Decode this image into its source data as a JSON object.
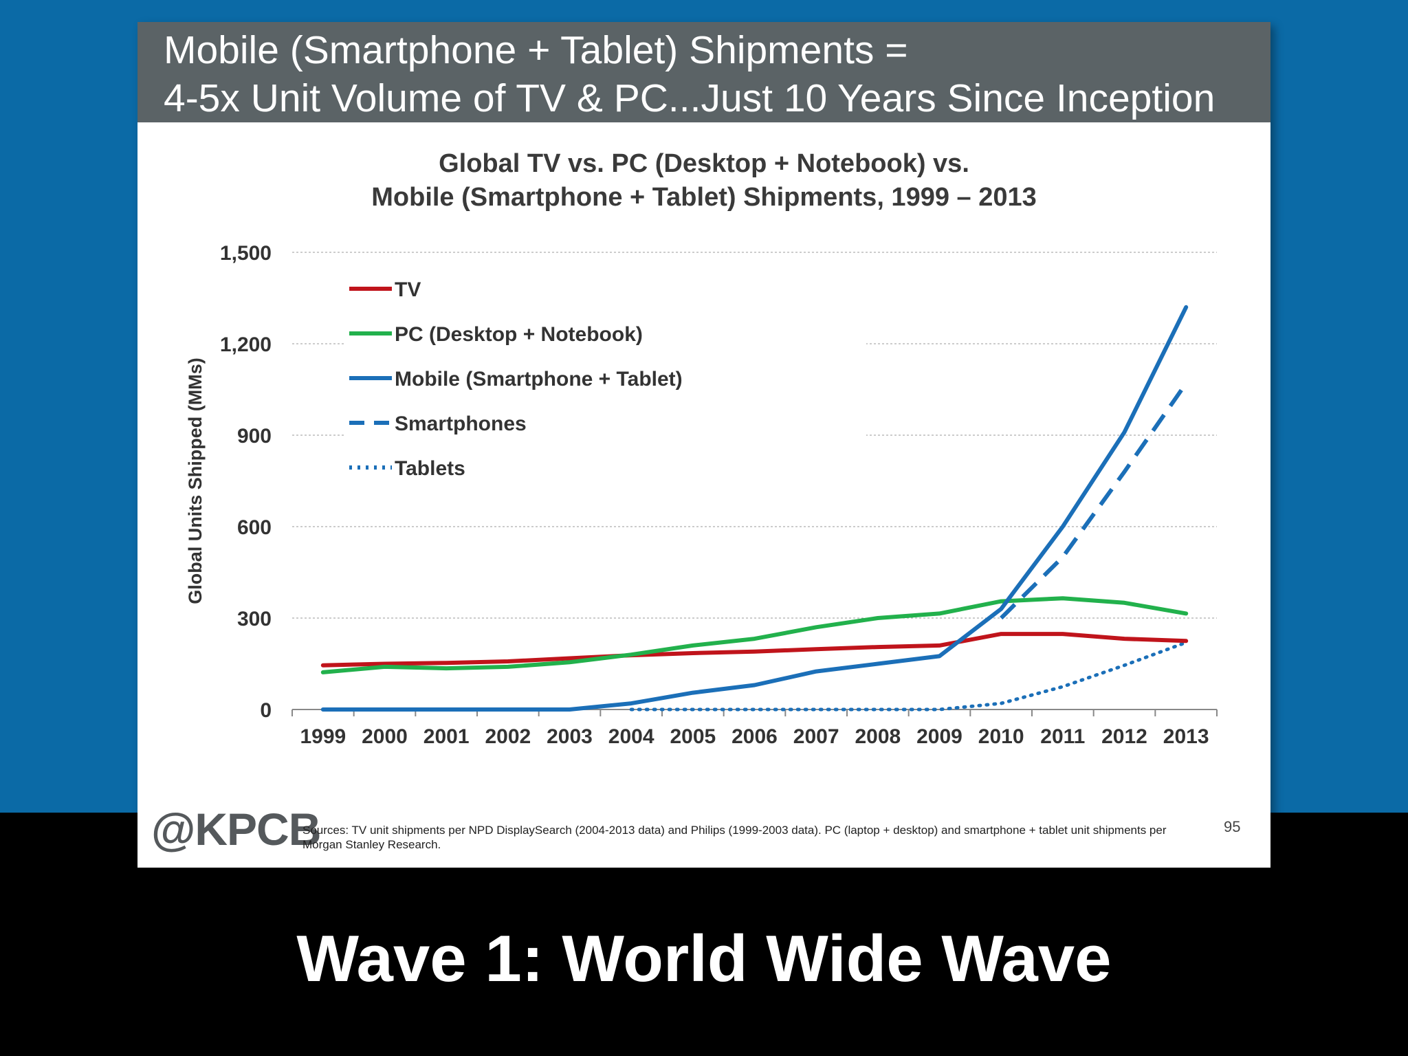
{
  "slide": {
    "title_line1": "Mobile (Smartphone + Tablet) Shipments =",
    "title_line2": "4-5x Unit Volume of TV & PC...Just 10 Years Since Inception",
    "logo": "@KPCB",
    "sources": "Sources: TV unit shipments per NPD DisplaySearch (2004-2013 data) and Philips (1999-2003 data). PC (laptop + desktop) and smartphone + tablet unit shipments per Morgan Stanley Research.",
    "page_number": "95"
  },
  "caption": "Wave 1: World Wide Wave",
  "chart_data": {
    "type": "line",
    "title_line1": "Global TV vs. PC (Desktop + Notebook) vs.",
    "title_line2": "Mobile (Smartphone + Tablet) Shipments, 1999 – 2013",
    "ylabel": "Global Units Shipped (MMs)",
    "xlabel": "",
    "ylim": [
      0,
      1500
    ],
    "yticks": [
      0,
      300,
      600,
      900,
      1200,
      1500
    ],
    "ytick_labels": [
      "0",
      "300",
      "600",
      "900",
      "1,200",
      "1,500"
    ],
    "grid": true,
    "legend_placement": "top-left",
    "categories": [
      "1999",
      "2000",
      "2001",
      "2002",
      "2003",
      "2004",
      "2005",
      "2006",
      "2007",
      "2008",
      "2009",
      "2010",
      "2011",
      "2012",
      "2013"
    ],
    "series": [
      {
        "name": "TV",
        "color": "#c0141b",
        "style": "solid",
        "values": [
          145,
          150,
          153,
          158,
          168,
          178,
          185,
          190,
          198,
          205,
          210,
          248,
          248,
          232,
          225
        ]
      },
      {
        "name": "PC (Desktop + Notebook)",
        "color": "#22b14c",
        "style": "solid",
        "values": [
          122,
          140,
          135,
          140,
          155,
          180,
          210,
          232,
          270,
          300,
          315,
          355,
          365,
          350,
          315
        ]
      },
      {
        "name": "Mobile (Smartphone + Tablet)",
        "color": "#1b6fb8",
        "style": "solid",
        "values": [
          0,
          0,
          0,
          0,
          0,
          20,
          55,
          80,
          125,
          150,
          175,
          330,
          600,
          910,
          1320
        ]
      },
      {
        "name": "Smartphones",
        "color": "#1b6fb8",
        "style": "dashed",
        "values": [
          null,
          null,
          null,
          null,
          null,
          null,
          null,
          null,
          null,
          null,
          null,
          300,
          500,
          780,
          1070
        ]
      },
      {
        "name": "Tablets",
        "color": "#1b6fb8",
        "style": "dotted",
        "values": [
          null,
          null,
          null,
          null,
          null,
          0,
          0,
          0,
          0,
          0,
          0,
          20,
          75,
          145,
          220
        ]
      }
    ]
  }
}
